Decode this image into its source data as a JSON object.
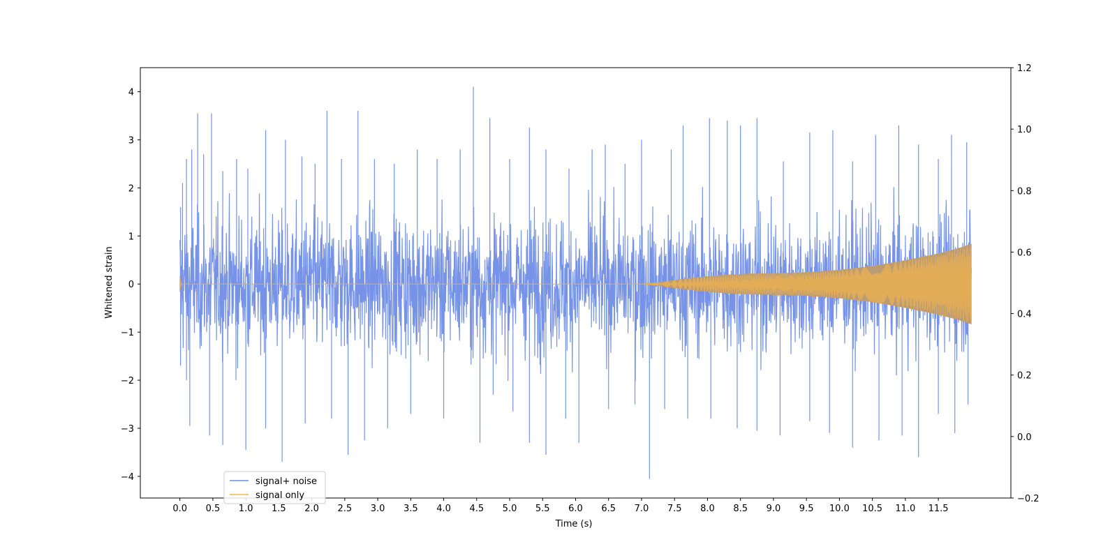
{
  "chart_data": {
    "type": "line",
    "title": "",
    "xlabel": "Time (s)",
    "ylabel": "Whitened strain",
    "xlim": [
      -0.6,
      12.6
    ],
    "ylim": [
      -4.45,
      4.5
    ],
    "y2lim": [
      -0.2,
      1.2
    ],
    "x_ticks": [
      0.0,
      0.5,
      1.0,
      1.5,
      2.0,
      2.5,
      3.0,
      3.5,
      4.0,
      4.5,
      5.0,
      5.5,
      6.0,
      6.5,
      7.0,
      7.5,
      8.0,
      8.5,
      9.0,
      9.5,
      10.0,
      10.5,
      11.0,
      11.5
    ],
    "x_tick_labels": [
      "0.0",
      "0.5",
      "1.0",
      "1.5",
      "2.0",
      "2.5",
      "3.0",
      "3.5",
      "4.0",
      "4.5",
      "5.0",
      "5.5",
      "6.0",
      "6.5",
      "7.0",
      "7.5",
      "8.0",
      "8.5",
      "9.0",
      "9.5",
      "10.0",
      "10.5",
      "11.0",
      "11.5"
    ],
    "y_ticks": [
      -4,
      -3,
      -2,
      -1,
      0,
      1,
      2,
      3,
      4
    ],
    "y_tick_labels": [
      "−4",
      "−3",
      "−2",
      "−1",
      "0",
      "1",
      "2",
      "3",
      "4"
    ],
    "y2_ticks": [
      -0.2,
      0.0,
      0.2,
      0.4,
      0.6,
      0.8,
      1.0,
      1.2
    ],
    "y2_tick_labels": [
      "−0.2",
      "0.0",
      "0.2",
      "0.4",
      "0.6",
      "0.8",
      "1.0",
      "1.2"
    ],
    "grid": false,
    "legend_position": "lower-left",
    "series": [
      {
        "name": "signal+ noise",
        "color": "#6f8de6",
        "kind": "noise-band",
        "x_range": [
          0.0,
          12.0
        ],
        "typical_band": [
          -1.3,
          1.3
        ],
        "peaks_max": [
          [
            0.01,
            1.6
          ],
          [
            0.04,
            2.1
          ],
          [
            0.1,
            2.6
          ],
          [
            0.18,
            2.8
          ],
          [
            0.27,
            3.55
          ],
          [
            0.36,
            2.7
          ],
          [
            0.48,
            3.55
          ],
          [
            0.65,
            2.35
          ],
          [
            0.86,
            2.6
          ],
          [
            1.03,
            2.4
          ],
          [
            1.3,
            3.2
          ],
          [
            1.6,
            3.0
          ],
          [
            1.85,
            2.65
          ],
          [
            2.05,
            2.5
          ],
          [
            2.23,
            3.6
          ],
          [
            2.45,
            2.6
          ],
          [
            2.7,
            3.6
          ],
          [
            2.95,
            2.6
          ],
          [
            3.25,
            2.5
          ],
          [
            3.6,
            2.8
          ],
          [
            3.9,
            2.6
          ],
          [
            4.25,
            2.8
          ],
          [
            4.45,
            4.1
          ],
          [
            4.7,
            3.45
          ],
          [
            5.0,
            2.6
          ],
          [
            5.3,
            3.25
          ],
          [
            5.55,
            2.8
          ],
          [
            5.9,
            2.4
          ],
          [
            6.25,
            2.8
          ],
          [
            6.45,
            2.9
          ],
          [
            6.75,
            2.5
          ],
          [
            7.0,
            3.0
          ],
          [
            7.45,
            2.8
          ],
          [
            7.63,
            3.3
          ],
          [
            8.03,
            3.45
          ],
          [
            8.3,
            3.4
          ],
          [
            8.5,
            3.3
          ],
          [
            8.75,
            3.45
          ],
          [
            9.15,
            2.55
          ],
          [
            9.55,
            3.15
          ],
          [
            9.9,
            3.2
          ],
          [
            10.2,
            2.55
          ],
          [
            10.55,
            3.1
          ],
          [
            10.9,
            3.3
          ],
          [
            11.2,
            2.9
          ],
          [
            11.5,
            2.6
          ],
          [
            11.7,
            3.1
          ],
          [
            11.93,
            2.95
          ]
        ],
        "peaks_min": [
          [
            0.01,
            -1.7
          ],
          [
            0.1,
            -2.0
          ],
          [
            0.15,
            -2.95
          ],
          [
            0.45,
            -3.15
          ],
          [
            0.65,
            -3.35
          ],
          [
            0.85,
            -2.0
          ],
          [
            1.0,
            -3.45
          ],
          [
            1.3,
            -3.0
          ],
          [
            1.55,
            -3.7
          ],
          [
            1.9,
            -2.9
          ],
          [
            2.3,
            -2.8
          ],
          [
            2.55,
            -3.55
          ],
          [
            2.8,
            -3.25
          ],
          [
            3.15,
            -3.0
          ],
          [
            3.5,
            -2.7
          ],
          [
            4.0,
            -2.8
          ],
          [
            4.55,
            -3.3
          ],
          [
            4.75,
            -2.3
          ],
          [
            5.05,
            -2.65
          ],
          [
            5.3,
            -3.3
          ],
          [
            5.55,
            -3.55
          ],
          [
            5.85,
            -2.8
          ],
          [
            6.05,
            -3.3
          ],
          [
            6.5,
            -2.6
          ],
          [
            6.9,
            -2.5
          ],
          [
            7.12,
            -4.05
          ],
          [
            7.35,
            -2.6
          ],
          [
            7.7,
            -2.8
          ],
          [
            8.05,
            -2.8
          ],
          [
            8.45,
            -3.0
          ],
          [
            8.75,
            -3.05
          ],
          [
            9.1,
            -3.15
          ],
          [
            9.55,
            -2.85
          ],
          [
            9.85,
            -3.1
          ],
          [
            10.2,
            -3.4
          ],
          [
            10.6,
            -3.25
          ],
          [
            10.95,
            -3.15
          ],
          [
            11.2,
            -3.6
          ],
          [
            11.5,
            -2.7
          ],
          [
            11.75,
            -3.1
          ],
          [
            11.95,
            -2.5
          ]
        ]
      },
      {
        "name": "signal only",
        "color": "#f5b54a",
        "kind": "chirp-envelope",
        "envelope": [
          [
            0.0,
            0.16
          ],
          [
            0.02,
            0.0
          ],
          [
            7.0,
            0.0
          ],
          [
            7.25,
            0.03
          ],
          [
            7.5,
            0.08
          ],
          [
            7.8,
            0.13
          ],
          [
            8.2,
            0.18
          ],
          [
            8.6,
            0.21
          ],
          [
            9.0,
            0.22
          ],
          [
            9.5,
            0.24
          ],
          [
            10.0,
            0.29
          ],
          [
            10.5,
            0.37
          ],
          [
            11.0,
            0.49
          ],
          [
            11.5,
            0.63
          ],
          [
            11.8,
            0.74
          ],
          [
            12.0,
            0.83
          ]
        ]
      }
    ]
  }
}
